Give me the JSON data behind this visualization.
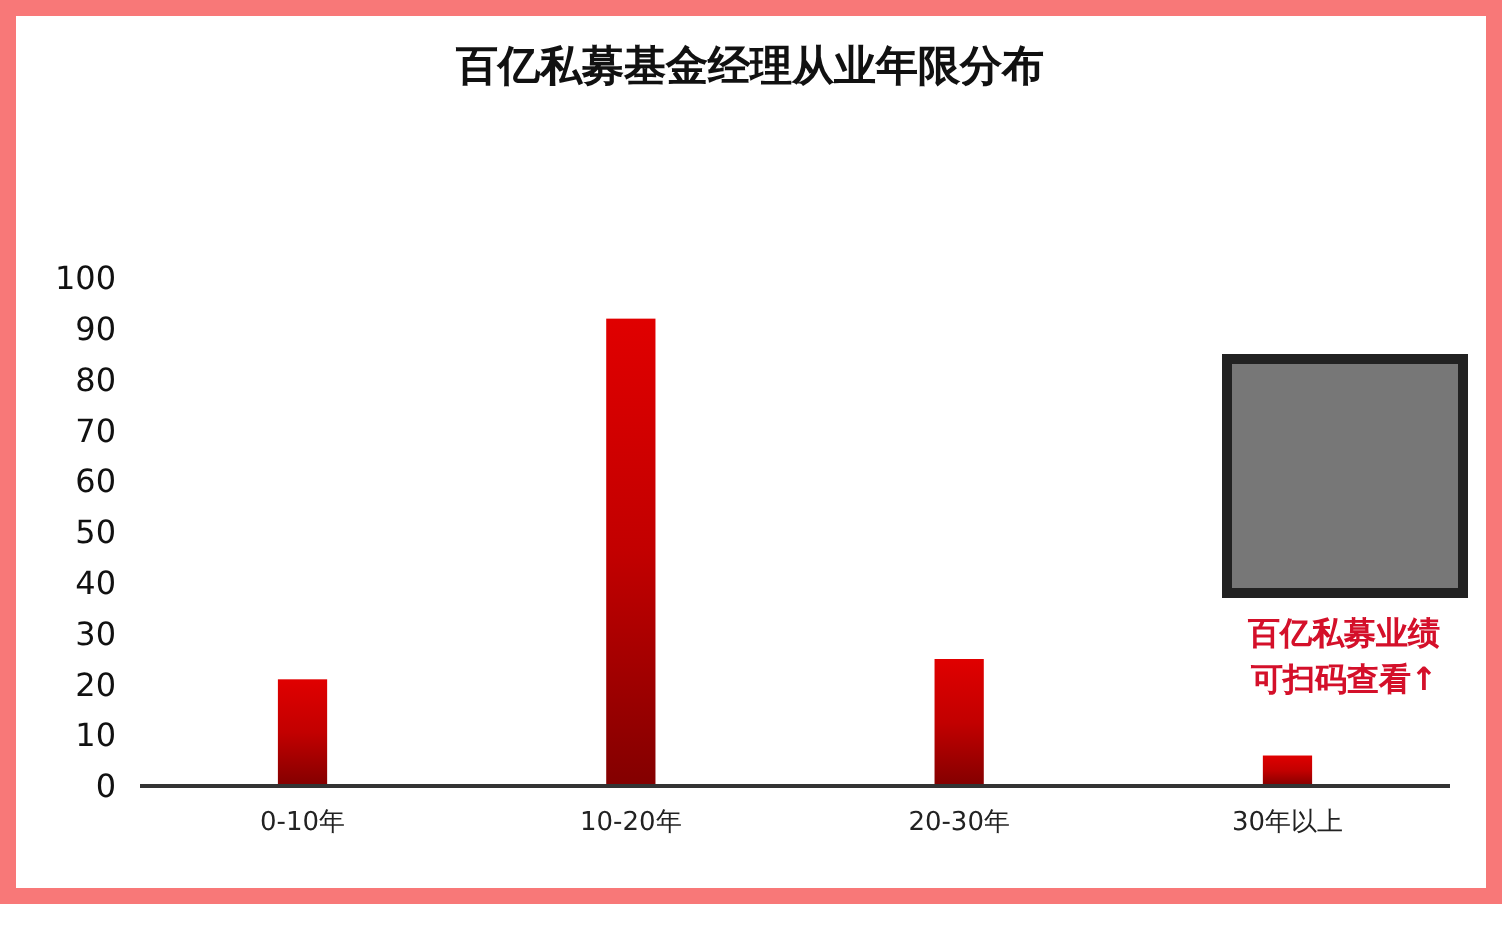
{
  "chart_data": {
    "type": "bar",
    "title": "百亿私募基金经理从业年限分布",
    "categories": [
      "0-10年",
      "10-20年",
      "20-30年",
      "30年以上"
    ],
    "values": [
      21,
      92,
      25,
      6
    ],
    "color": "#e00000",
    "ylim": [
      0,
      100
    ],
    "yticks": [
      0,
      10,
      20,
      30,
      40,
      50,
      60,
      70,
      80,
      90,
      100
    ],
    "grid": false,
    "annotations": [
      "百亿私募业绩",
      "可扫码查看↑"
    ]
  }
}
